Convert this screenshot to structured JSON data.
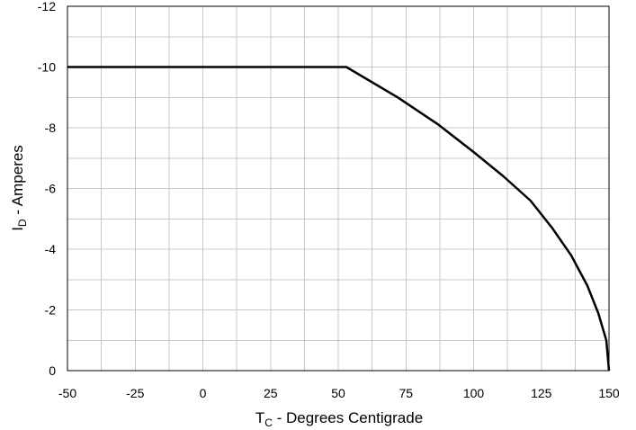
{
  "chart_data": {
    "type": "line",
    "title": "",
    "xlabel": {
      "prefix": "T",
      "subscript": "C",
      "suffix": " - Degrees Centigrade"
    },
    "ylabel": {
      "prefix": "I",
      "subscript": "D",
      "suffix": " - Amperes"
    },
    "xlim": [
      -50,
      150
    ],
    "ylim": [
      0,
      -12
    ],
    "x_ticks": [
      -50,
      -25,
      0,
      25,
      50,
      75,
      100,
      125,
      150
    ],
    "y_ticks": [
      0,
      -2,
      -4,
      -6,
      -8,
      -10,
      -12
    ],
    "x_minor_step": 12.5,
    "y_minor_step": 1,
    "grid": true,
    "series": [
      {
        "x": [
          -50,
          53,
          72,
          87,
          100,
          111,
          121,
          129,
          136,
          142,
          146,
          149,
          150
        ],
        "y": [
          -10,
          -10,
          -9.0,
          -8.1,
          -7.2,
          -6.4,
          -5.6,
          -4.7,
          -3.8,
          -2.8,
          -1.9,
          -1.0,
          0
        ]
      }
    ],
    "colors": {
      "line": "#000000",
      "grid": "#c8c8c8",
      "axis": "#000000"
    }
  }
}
